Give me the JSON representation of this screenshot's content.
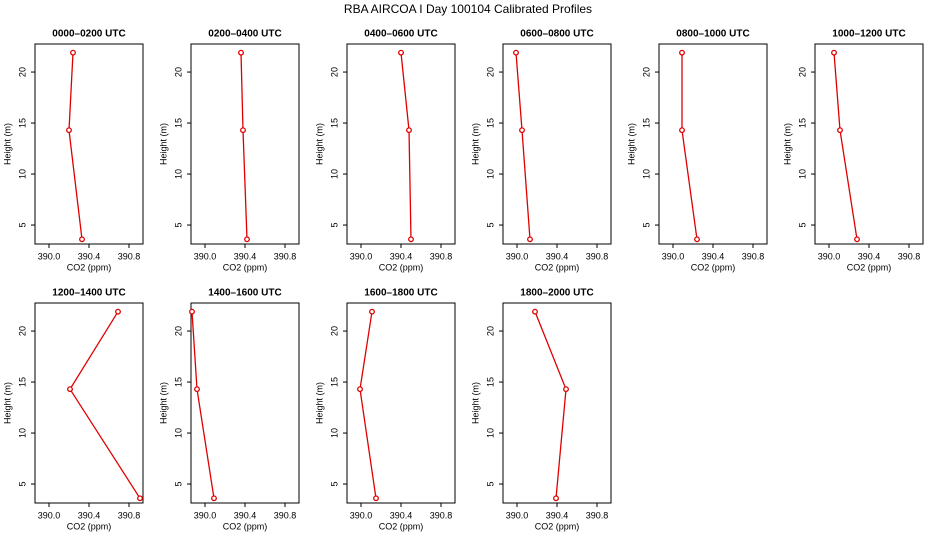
{
  "title": "RBA AIRCOA I  Day 100104  Calibrated Profiles",
  "chart_data": [
    {
      "type": "line",
      "title": "0000–0200 UTC",
      "xlabel": "CO2 (ppm)",
      "ylabel": "Height (m)",
      "color": "#e00000",
      "x": [
        390.24,
        390.2,
        390.33
      ],
      "values": [
        21.9,
        14.3,
        3.6
      ],
      "xlim": [
        389.86,
        390.94
      ],
      "xticks": [
        {
          "value": 390,
          "label": "390.0"
        },
        390.4,
        390.8
      ],
      "ylim": [
        3.14,
        22.75
      ],
      "yticks": [
        5,
        10,
        15,
        20
      ]
    },
    {
      "type": "line",
      "title": "0200–0400 UTC",
      "xlabel": "CO2 (ppm)",
      "ylabel": "Height (m)",
      "color": "#e00000",
      "x": [
        390.36,
        390.38,
        390.42
      ],
      "values": [
        21.9,
        14.3,
        3.6
      ],
      "xlim": [
        389.86,
        390.94
      ],
      "xticks": [
        {
          "value": 390,
          "label": "390.0"
        },
        390.4,
        390.8
      ],
      "ylim": [
        3.14,
        22.75
      ],
      "yticks": [
        5,
        10,
        15,
        20
      ]
    },
    {
      "type": "line",
      "title": "0400–0600 UTC",
      "xlabel": "CO2 (ppm)",
      "ylabel": "Height (m)",
      "color": "#e00000",
      "x": [
        390.4,
        390.48,
        390.5
      ],
      "values": [
        21.9,
        14.3,
        3.6
      ],
      "xlim": [
        389.86,
        390.94
      ],
      "xticks": [
        {
          "value": 390,
          "label": "390.0"
        },
        390.4,
        390.8
      ],
      "ylim": [
        3.14,
        22.75
      ],
      "yticks": [
        5,
        10,
        15,
        20
      ]
    },
    {
      "type": "line",
      "title": "0600–0800 UTC",
      "xlabel": "CO2 (ppm)",
      "ylabel": "Height (m)",
      "color": "#e00000",
      "x": [
        389.99,
        390.05,
        390.13
      ],
      "values": [
        21.9,
        14.3,
        3.6
      ],
      "xlim": [
        389.86,
        390.94
      ],
      "xticks": [
        {
          "value": 390,
          "label": "390.0"
        },
        390.4,
        390.8
      ],
      "ylim": [
        3.14,
        22.75
      ],
      "yticks": [
        5,
        10,
        15,
        20
      ]
    },
    {
      "type": "line",
      "title": "0800–1000 UTC",
      "xlabel": "CO2 (ppm)",
      "ylabel": "Height (m)",
      "color": "#e00000",
      "x": [
        390.09,
        390.09,
        390.24
      ],
      "values": [
        21.9,
        14.3,
        3.6
      ],
      "xlim": [
        389.86,
        390.94
      ],
      "xticks": [
        {
          "value": 390,
          "label": "390.0"
        },
        390.4,
        390.8
      ],
      "ylim": [
        3.14,
        22.75
      ],
      "yticks": [
        5,
        10,
        15,
        20
      ]
    },
    {
      "type": "line",
      "title": "1000–1200 UTC",
      "xlabel": "CO2 (ppm)",
      "ylabel": "Height (m)",
      "color": "#e00000",
      "x": [
        390.05,
        390.11,
        390.28
      ],
      "values": [
        21.9,
        14.3,
        3.6
      ],
      "xlim": [
        389.86,
        390.94
      ],
      "xticks": [
        {
          "value": 390,
          "label": "390.0"
        },
        390.4,
        390.8
      ],
      "ylim": [
        3.14,
        22.75
      ],
      "yticks": [
        5,
        10,
        15,
        20
      ]
    },
    {
      "type": "line",
      "title": "1200–1400 UTC",
      "xlabel": "CO2 (ppm)",
      "ylabel": "Height (m)",
      "color": "#e00000",
      "x": [
        390.69,
        390.21,
        390.91
      ],
      "values": [
        21.9,
        14.3,
        3.6
      ],
      "xlim": [
        389.86,
        390.94
      ],
      "xticks": [
        {
          "value": 390,
          "label": "390.0"
        },
        390.4,
        390.8
      ],
      "ylim": [
        3.14,
        22.75
      ],
      "yticks": [
        5,
        10,
        15,
        20
      ]
    },
    {
      "type": "line",
      "title": "1400–1600 UTC",
      "xlabel": "CO2 (ppm)",
      "ylabel": "Height (m)",
      "color": "#e00000",
      "x": [
        389.87,
        389.92,
        390.09
      ],
      "values": [
        21.9,
        14.3,
        3.6
      ],
      "xlim": [
        389.86,
        390.94
      ],
      "xticks": [
        {
          "value": 390,
          "label": "390.0"
        },
        390.4,
        390.8
      ],
      "ylim": [
        3.14,
        22.75
      ],
      "yticks": [
        5,
        10,
        15,
        20
      ]
    },
    {
      "type": "line",
      "title": "1600–1800 UTC",
      "xlabel": "CO2 (ppm)",
      "ylabel": "Height (m)",
      "color": "#e00000",
      "x": [
        390.11,
        389.99,
        390.15
      ],
      "values": [
        21.9,
        14.3,
        3.6
      ],
      "xlim": [
        389.86,
        390.94
      ],
      "xticks": [
        {
          "value": 390,
          "label": "390.0"
        },
        390.4,
        390.8
      ],
      "ylim": [
        3.14,
        22.75
      ],
      "yticks": [
        5,
        10,
        15,
        20
      ]
    },
    {
      "type": "line",
      "title": "1800–2000 UTC",
      "xlabel": "CO2 (ppm)",
      "ylabel": "Height (m)",
      "color": "#e00000",
      "x": [
        390.18,
        390.49,
        390.39
      ],
      "values": [
        21.9,
        14.3,
        3.6
      ],
      "xlim": [
        389.86,
        390.94
      ],
      "xticks": [
        {
          "value": 390,
          "label": "390.0"
        },
        390.4,
        390.8
      ],
      "ylim": [
        3.14,
        22.75
      ],
      "yticks": [
        5,
        10,
        15,
        20
      ]
    }
  ]
}
